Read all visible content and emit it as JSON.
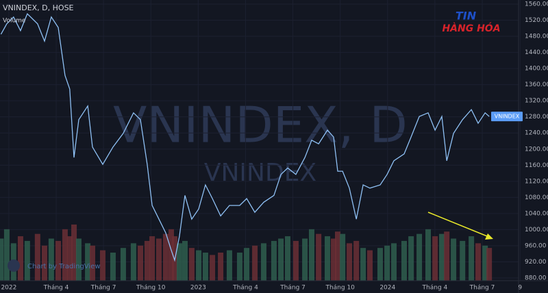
{
  "chart_data": {
    "type": "line",
    "header": "VNINDEX, D, HOSE",
    "volume_label": "Volume",
    "watermark": {
      "main": "VNINDEX, D",
      "sub": "VNINDEX"
    },
    "price_badge": "VNINDEX",
    "credit": "Chart by TradingView",
    "logo": {
      "line1": "TIN",
      "line2": "HÀNG HÓA"
    },
    "x": [
      -0.5,
      -0.13,
      0.3,
      0.74,
      1.17,
      1.82,
      2.26,
      2.69,
      3.13,
      3.56,
      3.86,
      4.13,
      4.43,
      5.0,
      5.3,
      5.95,
      6.6,
      7.25,
      7.9,
      8.34,
      8.77,
      9.08,
      9.51,
      9.94,
      10.29,
      10.51,
      10.81,
      11.16,
      11.59,
      12.03,
      12.46,
      12.9,
      13.42,
      13.98,
      14.63,
      15.07,
      15.59,
      16.15,
      16.8,
      17.24,
      17.67,
      18.19,
      18.76,
      19.19,
      19.63,
      20.19,
      20.58,
      20.84,
      21.15,
      21.58,
      22.02,
      22.45,
      22.88,
      23.53,
      23.97,
      24.4,
      25.05,
      25.49,
      26.01,
      26.57,
      27.01,
      27.44,
      27.75,
      28.18,
      28.75,
      29.31,
      29.74,
      30.18,
      30.44
    ],
    "series": [
      {
        "name": "VNINDEX",
        "color": "#8fc1f5",
        "values": [
          1485,
          1511,
          1528,
          1494,
          1536,
          1511,
          1468,
          1528,
          1502,
          1383,
          1349,
          1179,
          1273,
          1307,
          1205,
          1162,
          1205,
          1239,
          1290,
          1273,
          1162,
          1060,
          1026,
          992,
          949,
          924,
          983,
          1085,
          1026,
          1051,
          1111,
          1077,
          1034,
          1060,
          1060,
          1077,
          1043,
          1068,
          1085,
          1137,
          1153,
          1137,
          1179,
          1222,
          1213,
          1247,
          1230,
          1145,
          1145,
          1103,
          1026,
          1111,
          1103,
          1111,
          1137,
          1171,
          1188,
          1230,
          1281,
          1290,
          1247,
          1281,
          1171,
          1239,
          1273,
          1298,
          1264,
          1290,
          1281
        ]
      },
      {
        "name": "Volume",
        "axis": "y2",
        "color": "#6b2f35",
        "values": [
          90,
          110,
          80,
          95,
          85,
          100,
          75,
          90,
          85,
          110,
          95,
          120,
          90,
          80,
          75,
          65,
          60,
          70,
          80,
          75,
          85,
          95,
          90,
          100,
          110,
          95,
          80,
          85,
          70,
          65,
          60,
          55,
          60,
          65,
          60,
          70,
          75,
          80,
          85,
          90,
          95,
          85,
          90,
          110,
          100,
          95,
          90,
          105,
          100,
          80,
          85,
          70,
          65,
          70,
          75,
          80,
          85,
          95,
          100,
          110,
          95,
          100,
          105,
          90,
          85,
          95,
          80,
          75,
          70
        ]
      }
    ],
    "up_color": "#2f5e4e",
    "xlim": [
      -0.56,
      32.3
    ],
    "xticks": [
      {
        "value": 0,
        "label": "2022"
      },
      {
        "value": 3,
        "label": "Tháng 4"
      },
      {
        "value": 6,
        "label": "Tháng 7"
      },
      {
        "value": 9,
        "label": "Tháng 10"
      },
      {
        "value": 12,
        "label": "2023"
      },
      {
        "value": 15,
        "label": "Tháng 4"
      },
      {
        "value": 18,
        "label": "Tháng 7"
      },
      {
        "value": 21,
        "label": "Tháng 10"
      },
      {
        "value": 24,
        "label": "2024"
      },
      {
        "value": 27,
        "label": "Tháng 4"
      },
      {
        "value": 30,
        "label": "Tháng 7"
      },
      {
        "value": 32.4,
        "label": "9"
      }
    ],
    "ylim": [
      873.2,
      1570.2
    ],
    "yticks": [
      {
        "value": 880,
        "label": "880.00"
      },
      {
        "value": 920,
        "label": "920.00"
      },
      {
        "value": 960,
        "label": "960.00"
      },
      {
        "value": 1000,
        "label": "1000.00"
      },
      {
        "value": 1040,
        "label": "1040.00"
      },
      {
        "value": 1080,
        "label": "1080.00"
      },
      {
        "value": 1120,
        "label": "1120.00"
      },
      {
        "value": 1160,
        "label": "1160.00"
      },
      {
        "value": 1200,
        "label": "1200.00"
      },
      {
        "value": 1240,
        "label": "1240.00"
      },
      {
        "value": 1280,
        "label": "1280.00"
      },
      {
        "value": 1320,
        "label": "1320.00"
      },
      {
        "value": 1360,
        "label": "1360.00"
      },
      {
        "value": 1400,
        "label": "1400.00"
      },
      {
        "value": 1440,
        "label": "1440.00"
      },
      {
        "value": 1480,
        "label": "1480.00"
      },
      {
        "value": 1520,
        "label": "1520.00"
      },
      {
        "value": 1560,
        "label": "1560.00"
      }
    ],
    "y2lim": [
      0,
      600
    ],
    "grid": true
  }
}
